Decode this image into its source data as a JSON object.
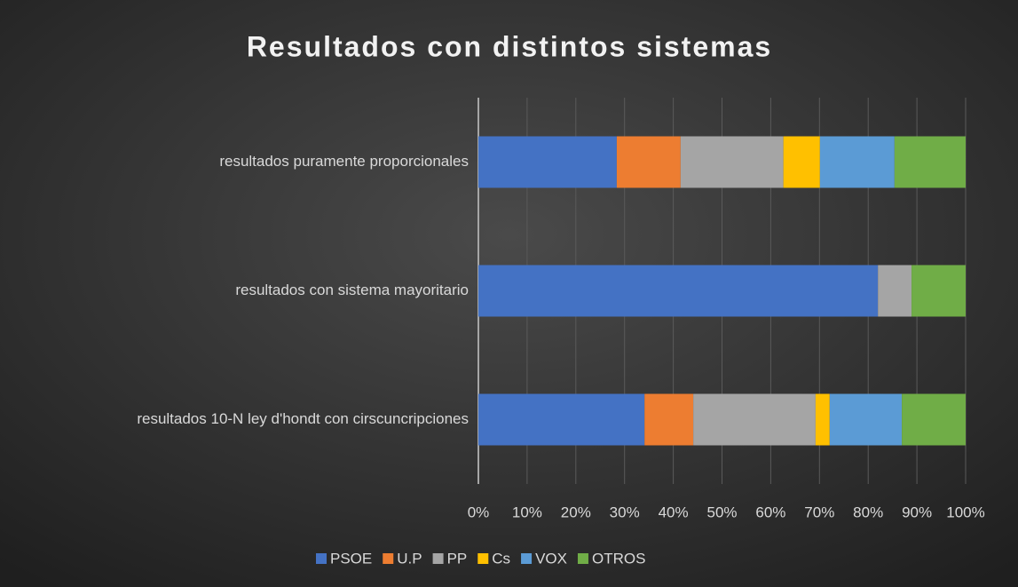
{
  "chart_data": {
    "type": "stacked_bar_horizontal",
    "title": "Resultados con distintos sistemas",
    "categories": [
      "resultados puramente proporcionales",
      "resultados con sistema mayoritario",
      "resultados 10-N ley d'hondt con cirscuncripciones"
    ],
    "series": [
      {
        "name": "PSOE",
        "color": "#4472c4",
        "values": [
          28.4,
          82.0,
          34.1
        ]
      },
      {
        "name": "U.P",
        "color": "#ed7d31",
        "values": [
          13.1,
          0,
          10.0
        ]
      },
      {
        "name": "PP",
        "color": "#a5a5a5",
        "values": [
          21.1,
          6.9,
          25.1
        ]
      },
      {
        "name": "Cs",
        "color": "#ffc000",
        "values": [
          7.5,
          0,
          2.9
        ]
      },
      {
        "name": "VOX",
        "color": "#5b9bd5",
        "values": [
          15.3,
          0,
          14.8
        ]
      },
      {
        "name": "OTROS",
        "color": "#70ad47",
        "values": [
          14.6,
          11.1,
          13.1
        ]
      }
    ],
    "xlim": [
      0,
      100
    ],
    "xticks": [
      {
        "value": 0,
        "label": "0%"
      },
      {
        "value": 10,
        "label": "10%"
      },
      {
        "value": 20,
        "label": "20%"
      },
      {
        "value": 30,
        "label": "30%"
      },
      {
        "value": 40,
        "label": "40%"
      },
      {
        "value": 50,
        "label": "50%"
      },
      {
        "value": 60,
        "label": "60%"
      },
      {
        "value": 70,
        "label": "70%"
      },
      {
        "value": 80,
        "label": "80%"
      },
      {
        "value": 90,
        "label": "90%"
      },
      {
        "value": 100,
        "label": "100%"
      }
    ],
    "grid": true,
    "legend": "bottom"
  }
}
